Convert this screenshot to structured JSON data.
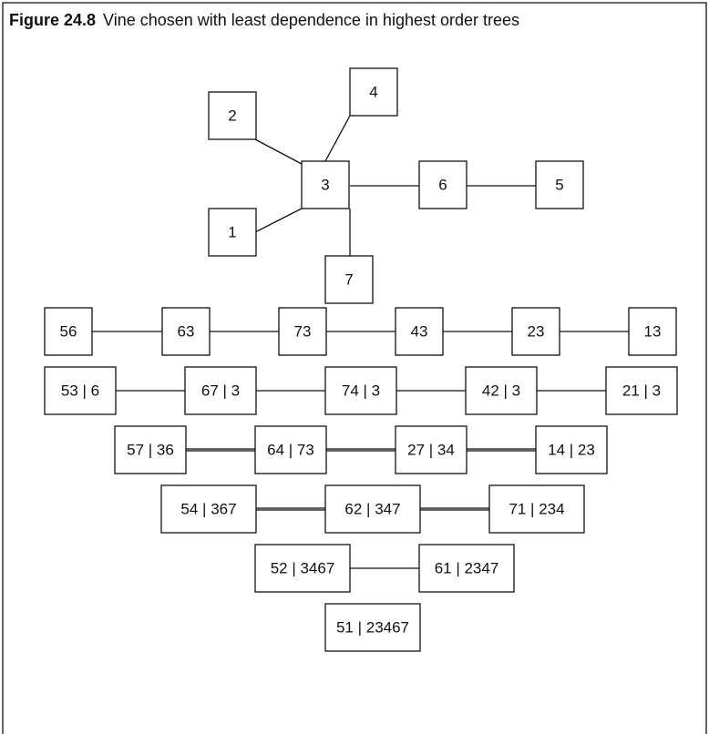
{
  "figure": {
    "label": "Figure 24.8",
    "title": "Vine chosen with least dependence in highest order trees"
  },
  "trees": [
    [
      "2",
      "4",
      "3",
      "6",
      "5",
      "1",
      "7"
    ],
    [
      "56",
      "63",
      "73",
      "43",
      "23",
      "13"
    ],
    [
      "53 | 6",
      "67 | 3",
      "74 | 3",
      "42 | 3",
      "21 | 3"
    ],
    [
      "57 | 36",
      "64 | 73",
      "27 | 34",
      "14 | 23"
    ],
    [
      "54 | 367",
      "62 | 347",
      "71 | 234"
    ],
    [
      "52 | 3467",
      "61 | 2347"
    ],
    [
      "51 | 23467"
    ]
  ]
}
